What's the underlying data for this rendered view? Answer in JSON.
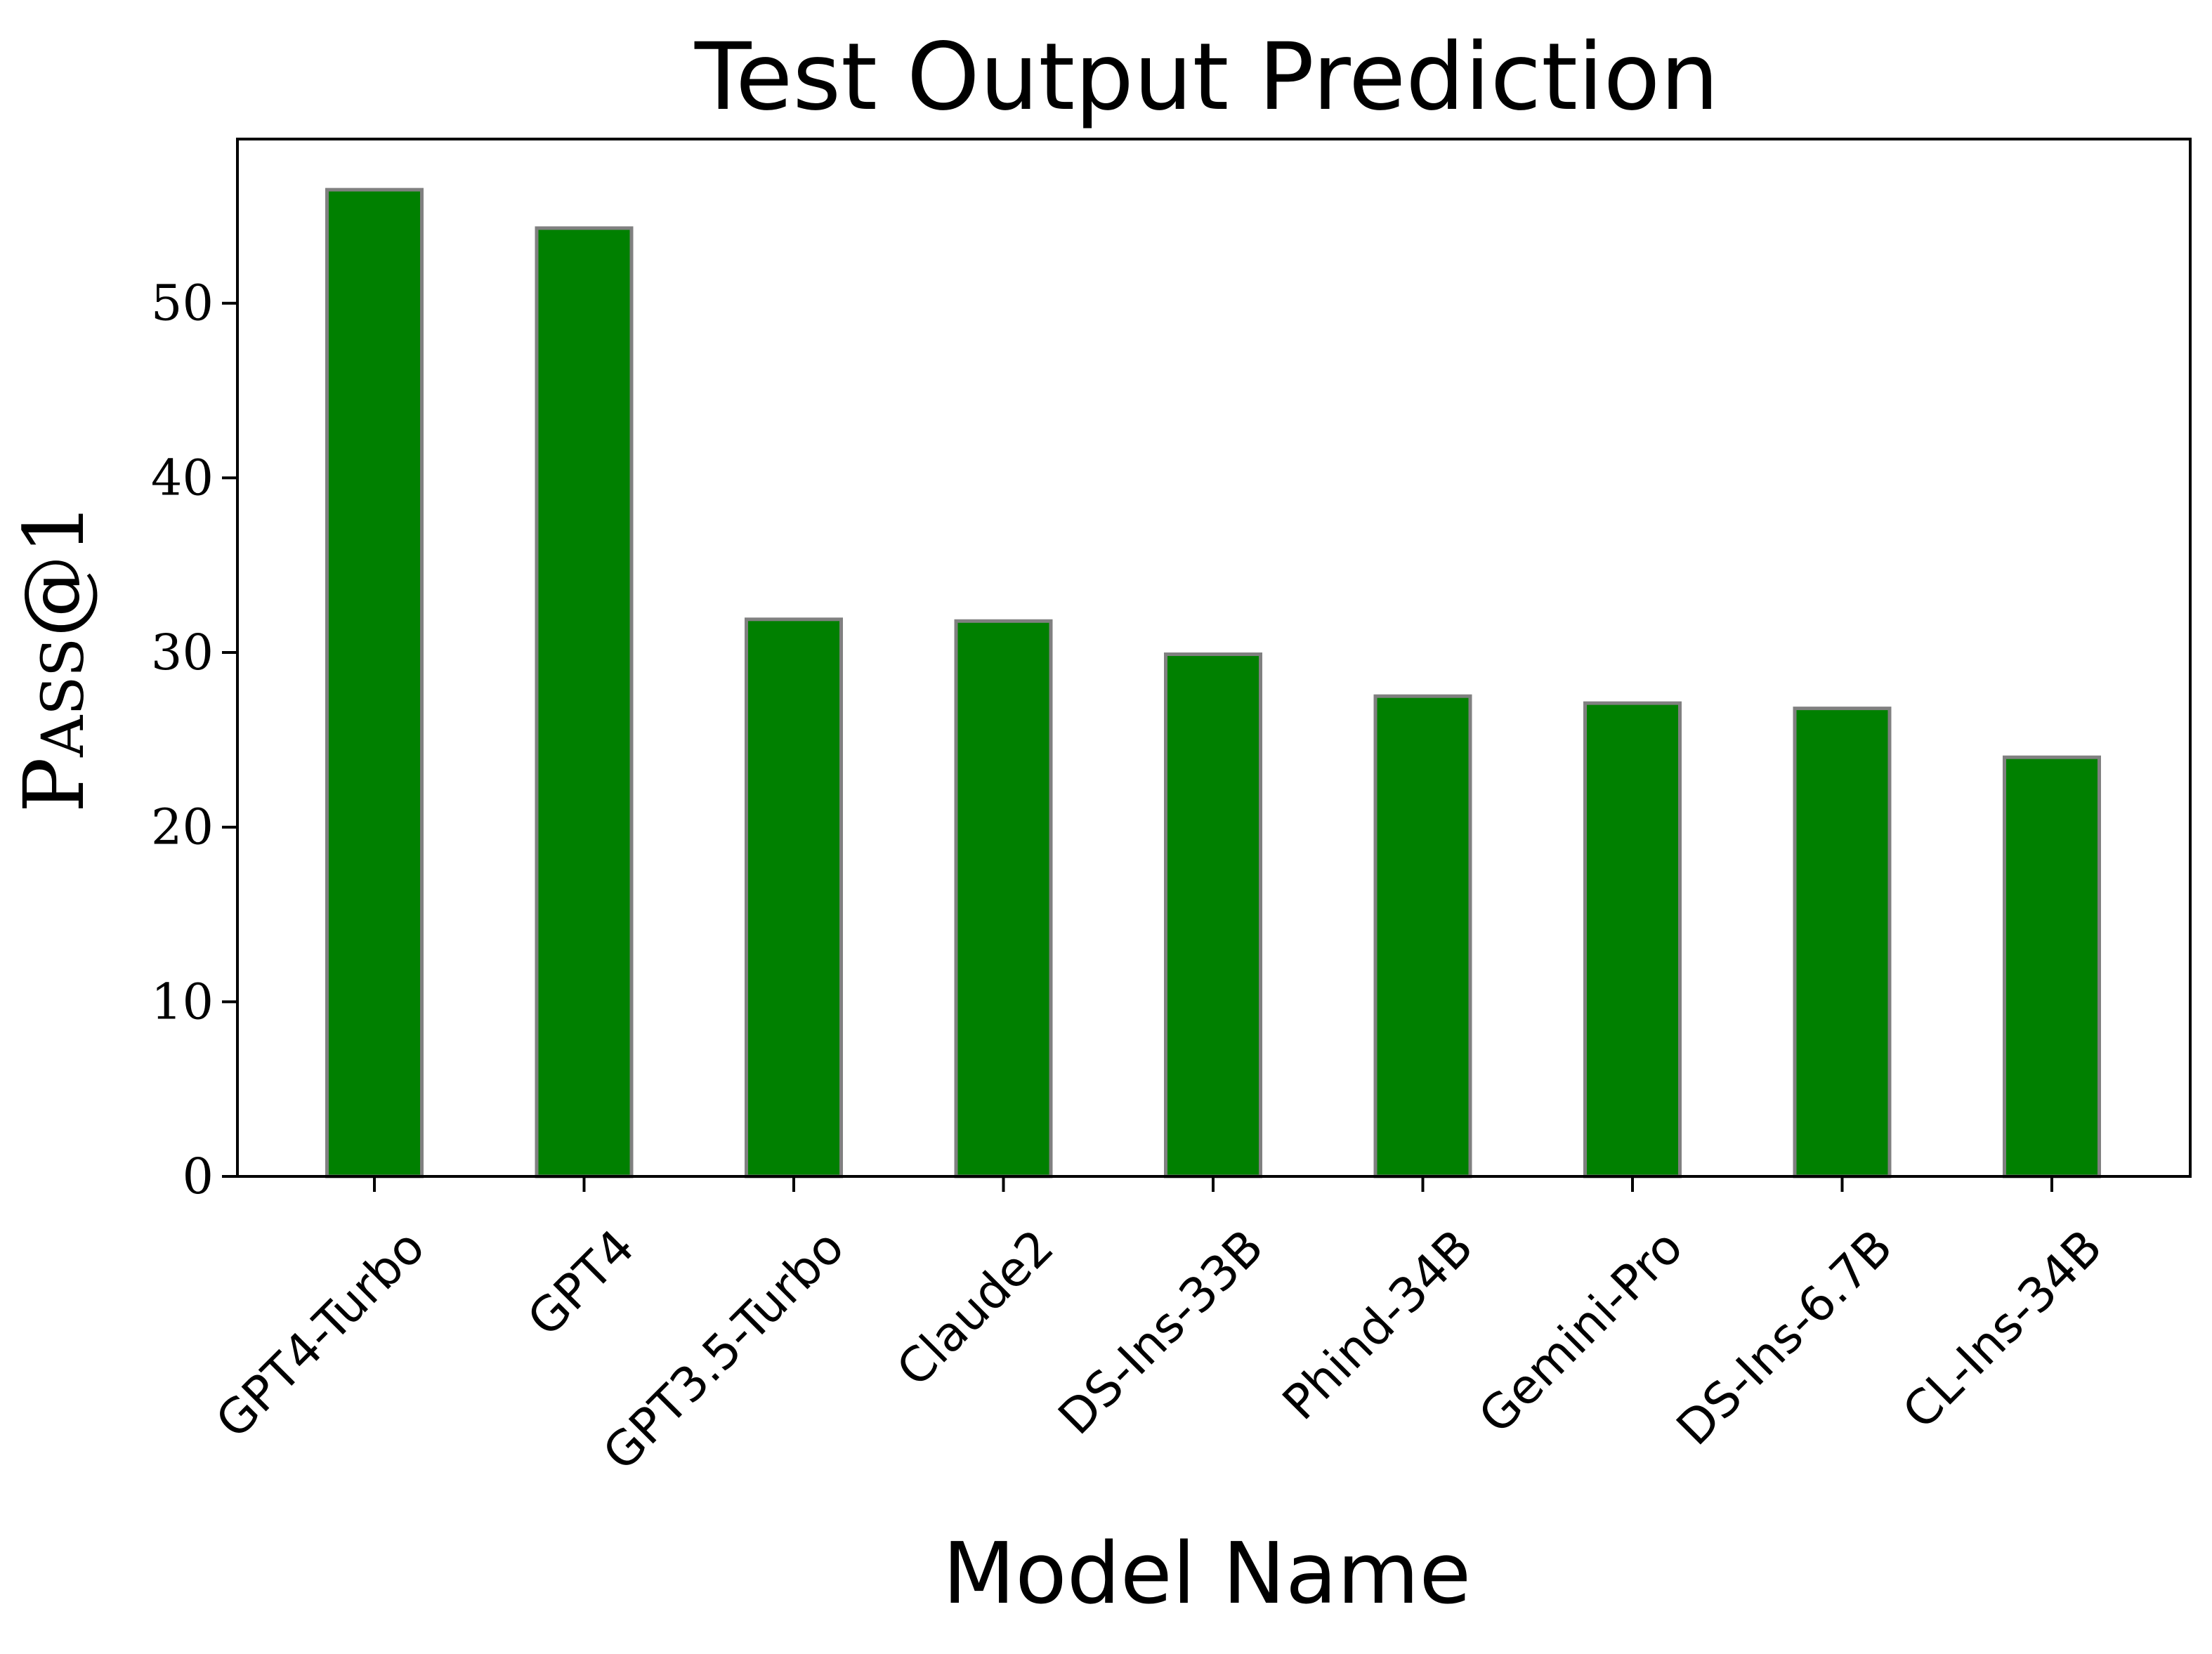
{
  "chart_data": {
    "type": "bar",
    "title": "Test Output Prediction",
    "xlabel": "Model Name",
    "ylabel": "Pass@1",
    "categories": [
      "GPT4-Turbo",
      "GPT4",
      "GPT3.5-Turbo",
      "Claude2",
      "DS-Ins-33B",
      "Phind-34B",
      "Gemini-Pro",
      "DS-Ins-6.7B",
      "CL-Ins-34B"
    ],
    "values": [
      56.5,
      54.3,
      31.9,
      31.8,
      29.9,
      27.5,
      27.1,
      26.8,
      24.0
    ],
    "yticks": [
      "0",
      "10",
      "20",
      "30",
      "40",
      "50"
    ],
    "ylim": [
      0,
      59.4
    ],
    "grid": false,
    "legend": "none",
    "colors": {
      "bar_fill": "#008000",
      "bar_edge": "#808080",
      "axes": "#000000",
      "background": "#ffffff"
    }
  }
}
